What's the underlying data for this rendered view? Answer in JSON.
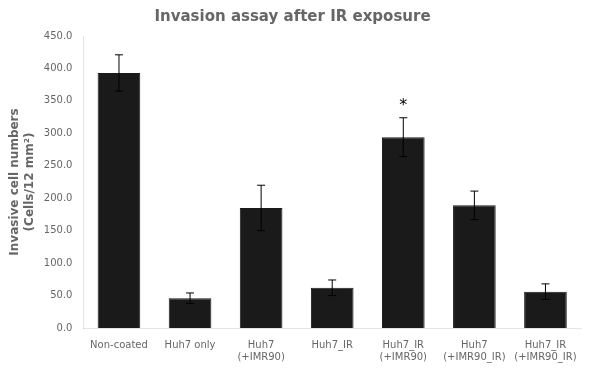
{
  "chart_data": {
    "type": "bar",
    "title": "Invasion assay after IR exposure",
    "ylabel": "Invasive cell numbers\n(Cells/12 mm²)",
    "categories": [
      "Non-coated",
      "Huh7 only",
      "Huh7\n(+IMR90)",
      "Huh7_IR",
      "Huh7_IR\n(+IMR90)",
      "Huh7\n(+IMR90_IR)",
      "Huh7_IR\n(+IMR90_IR)"
    ],
    "values": [
      393,
      46,
      185,
      62,
      294,
      189,
      56
    ],
    "errors": [
      28,
      8,
      35,
      12,
      30,
      22,
      12
    ],
    "color": "#1a1a1a",
    "ylim": [
      0,
      450
    ],
    "yticks": [
      {
        "value": 0,
        "label": "0.0"
      },
      {
        "value": 50,
        "label": "50.0"
      },
      {
        "value": 100,
        "label": "100.0"
      },
      {
        "value": 150,
        "label": "150.0"
      },
      {
        "value": 200,
        "label": "200.0"
      },
      {
        "value": 250,
        "label": "250.0"
      },
      {
        "value": 300,
        "label": "300.0"
      },
      {
        "value": 350,
        "label": "350.0"
      },
      {
        "value": 400,
        "label": "400.0"
      },
      {
        "value": 450,
        "label": "450.0"
      }
    ],
    "annotations": [
      {
        "text": "*",
        "category": "Huh7_IR\n(+IMR90)"
      }
    ],
    "grid": false
  }
}
